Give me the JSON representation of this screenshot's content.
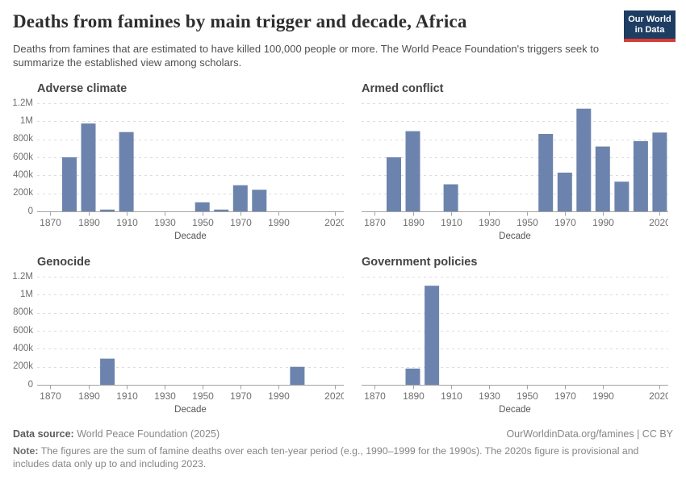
{
  "header": {
    "title": "Deaths from famines by main trigger and decade, Africa",
    "subtitle": "Deaths from famines that are estimated to have killed 100,000 people or more. The World Peace Foundation's triggers seek to summarize the established view among scholars.",
    "logo": {
      "line1": "Our World",
      "line2": "in Data"
    }
  },
  "chart_data": [
    {
      "type": "bar",
      "title": "Adverse climate",
      "xlabel": "Decade",
      "ylim": [
        0,
        1200000
      ],
      "x": [
        1880,
        1890,
        1900,
        1910,
        1950,
        1960,
        1970,
        1980
      ],
      "values": [
        600000,
        975000,
        20000,
        880000,
        100000,
        20000,
        290000,
        240000
      ]
    },
    {
      "type": "bar",
      "title": "Armed conflict",
      "xlabel": "Decade",
      "ylim": [
        0,
        1200000
      ],
      "x": [
        1880,
        1890,
        1910,
        1960,
        1970,
        1980,
        1990,
        2000,
        2010,
        2020
      ],
      "values": [
        600000,
        890000,
        300000,
        860000,
        430000,
        1140000,
        720000,
        330000,
        780000,
        875000
      ]
    },
    {
      "type": "bar",
      "title": "Genocide",
      "xlabel": "Decade",
      "ylim": [
        0,
        1200000
      ],
      "x": [
        1900,
        2000
      ],
      "values": [
        290000,
        200000
      ]
    },
    {
      "type": "bar",
      "title": "Government policies",
      "xlabel": "Decade",
      "ylim": [
        0,
        1200000
      ],
      "x": [
        1890,
        1900
      ],
      "values": [
        180000,
        1100000
      ]
    }
  ],
  "axes": {
    "x_ticks": [
      1870,
      1890,
      1910,
      1930,
      1950,
      1970,
      1990,
      2020
    ],
    "x_domain": [
      1863,
      2024.5
    ],
    "y_ticks": [
      {
        "v": 0,
        "label": "0"
      },
      {
        "v": 200000,
        "label": "200k"
      },
      {
        "v": 400000,
        "label": "400k"
      },
      {
        "v": 600000,
        "label": "600k"
      },
      {
        "v": 800000,
        "label": "800k"
      },
      {
        "v": 1000000,
        "label": "1M"
      },
      {
        "v": 1200000,
        "label": "1.2M"
      }
    ]
  },
  "colors": {
    "bar": "#6c84ad",
    "gridline": "#dcdcdc",
    "axis_line": "#a3a3a3",
    "tick_label": "#6f6f6f",
    "axis_title": "#565656",
    "logo_bg": "#1d3d63",
    "logo_accent": "#d93a34"
  },
  "footer": {
    "source_label": "Data source:",
    "source_value": " World Peace Foundation (2025)",
    "link": "OurWorldinData.org/famines | CC BY",
    "note_label": "Note:",
    "note_value": " The figures are the sum of famine deaths over each ten-year period (e.g., 1990–1999 for the 1990s). The 2020s figure is provisional and includes data only up to and including 2023."
  }
}
